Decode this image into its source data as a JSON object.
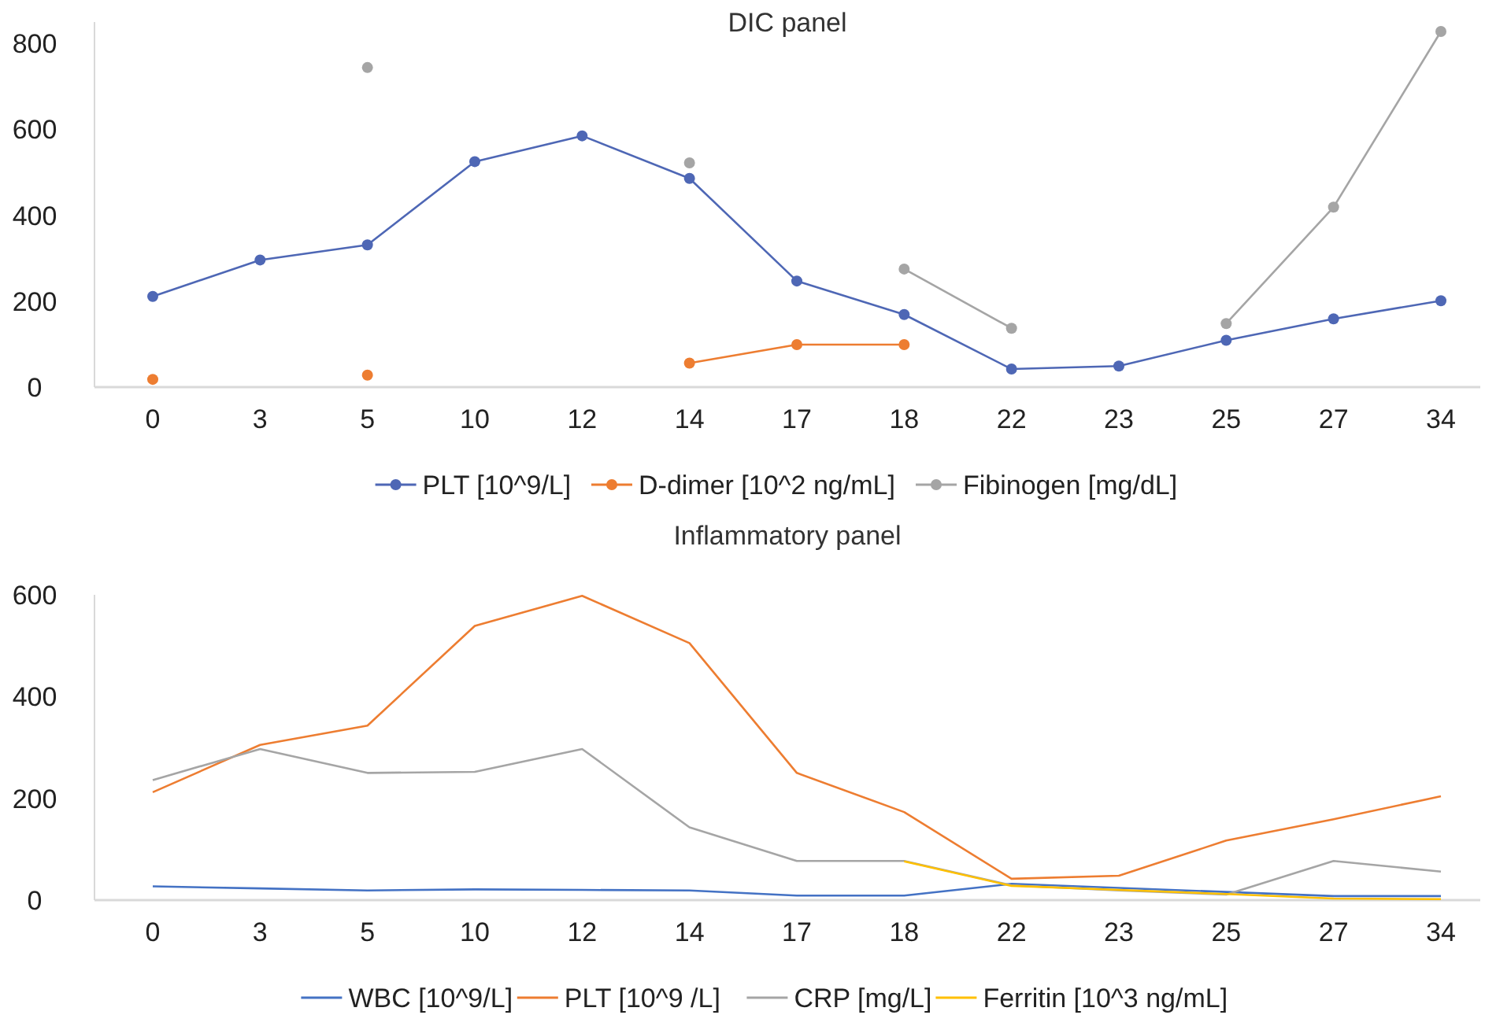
{
  "chart_data": [
    {
      "type": "line",
      "title": "DIC panel",
      "categories": [
        "0",
        "3",
        "5",
        "10",
        "12",
        "14",
        "17",
        "18",
        "22",
        "23",
        "25",
        "27",
        "34"
      ],
      "ylim": [
        0,
        850
      ],
      "yticks": [
        0,
        200,
        400,
        600,
        800
      ],
      "grid": false,
      "legend": "bottom",
      "marker": "circle",
      "line_style": "solid",
      "series": [
        {
          "name": "PLT [10^9/L]",
          "color": "#4e67b5",
          "values": [
            211,
            296,
            331,
            525,
            585,
            486,
            247,
            169,
            42,
            49,
            109,
            159,
            201
          ]
        },
        {
          "name": "D-dimer [10^2 ng/mL]",
          "color": "#ed7d31",
          "values": [
            18,
            null,
            28,
            null,
            null,
            56,
            99,
            99,
            null,
            null,
            null,
            null,
            null
          ]
        },
        {
          "name": "Fibinogen [mg/dL]",
          "color": "#a5a5a5",
          "values": [
            null,
            null,
            744,
            null,
            null,
            522,
            null,
            275,
            137,
            null,
            148,
            419,
            828
          ]
        }
      ]
    },
    {
      "type": "line",
      "title": "Inflammatory panel",
      "categories": [
        "0",
        "3",
        "5",
        "10",
        "12",
        "14",
        "17",
        "18",
        "22",
        "23",
        "25",
        "27",
        "34"
      ],
      "ylim": [
        0,
        600
      ],
      "yticks": [
        0,
        200,
        400,
        600
      ],
      "grid": false,
      "legend": "bottom",
      "marker": "none",
      "line_style": "solid",
      "series": [
        {
          "name": "WBC [10^9/L]",
          "color": "#4472c4",
          "values": [
            27,
            23,
            19,
            21,
            20,
            19,
            9,
            9,
            32,
            24,
            16,
            8,
            8
          ]
        },
        {
          "name": "PLT [10^9 /L]",
          "color": "#ed7d31",
          "values": [
            212,
            305,
            343,
            539,
            598,
            505,
            250,
            173,
            42,
            48,
            117,
            159,
            204
          ]
        },
        {
          "name": "CRP [mg/L]",
          "color": "#a5a5a5",
          "values": [
            236,
            297,
            250,
            252,
            297,
            143,
            77,
            77,
            29,
            19,
            11,
            77,
            56
          ]
        },
        {
          "name": "Ferritin [10^3 ng/mL]",
          "color": "#ffc000",
          "values": [
            null,
            null,
            null,
            null,
            null,
            null,
            null,
            76,
            28,
            20,
            12,
            3,
            2
          ]
        }
      ]
    }
  ]
}
